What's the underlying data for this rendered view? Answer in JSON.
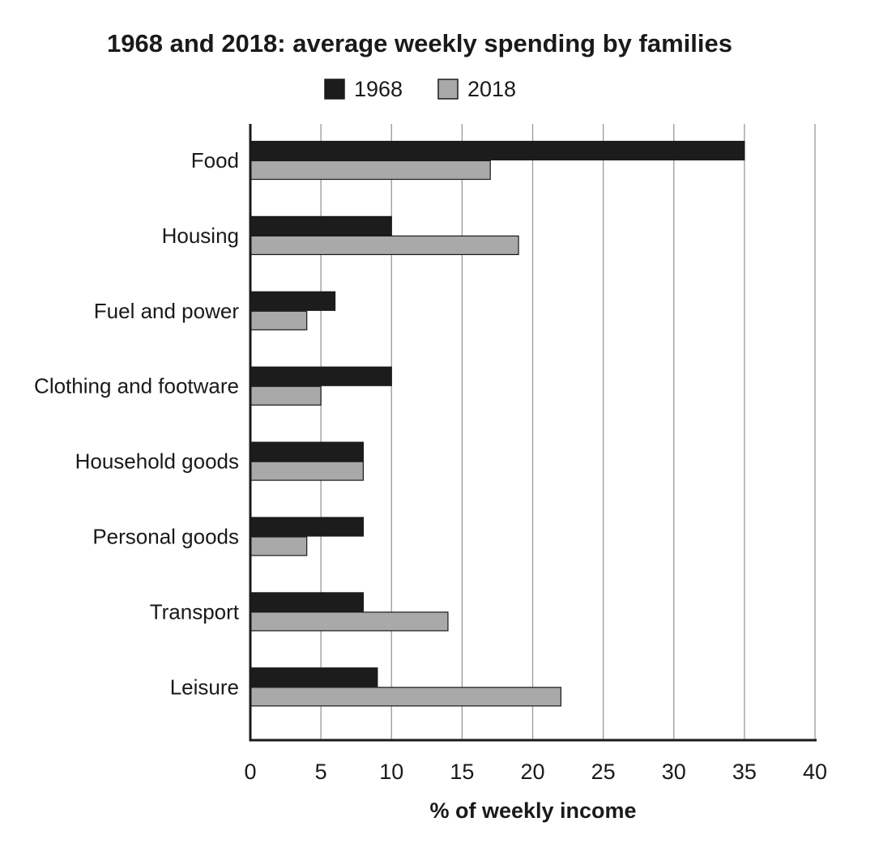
{
  "chart_data": {
    "type": "bar",
    "orientation": "horizontal",
    "title": "1968 and 2018: average weekly spending by families",
    "xlabel": "% of weekly income",
    "ylabel": "",
    "xlim": [
      0,
      40
    ],
    "x_ticks": [
      0,
      5,
      10,
      15,
      20,
      25,
      30,
      35,
      40
    ],
    "grid": true,
    "legend_position": "top-center",
    "categories": [
      "Food",
      "Housing",
      "Fuel and power",
      "Clothing and footware",
      "Household goods",
      "Personal goods",
      "Transport",
      "Leisure"
    ],
    "series": [
      {
        "name": "1968",
        "color": "#1c1c1c",
        "values": [
          35,
          10,
          6,
          10,
          8,
          8,
          8,
          9
        ]
      },
      {
        "name": "2018",
        "color": "#a9a9a9",
        "values": [
          17,
          19,
          4,
          5,
          8,
          4,
          14,
          22
        ]
      }
    ]
  }
}
